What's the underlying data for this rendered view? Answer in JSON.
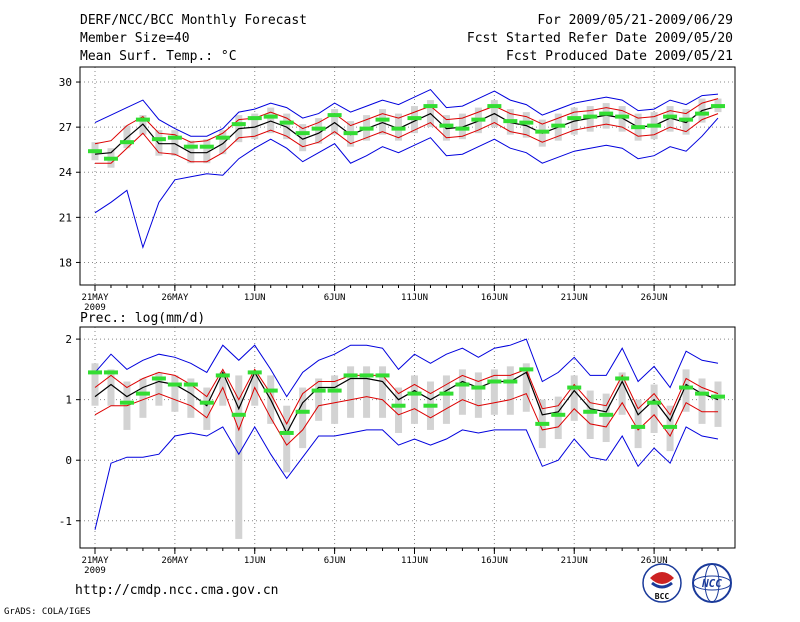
{
  "header": {
    "left_line1": "DERF/NCC/BCC Monthly Forecast",
    "left_line2": "Member Size=40",
    "left_line3": "Mean Surf. Temp.: °C",
    "right_line1": "For 2009/05/21-2009/06/29",
    "right_line2": "Fcst Started Refer Date 2009/05/20",
    "right_line3": "Fcst Produced Date 2009/05/21"
  },
  "footer": {
    "url": "http://cmdp.ncc.cma.gov.cn",
    "credit": "GrADS: COLA/IGES",
    "logo_bcc_text": "BCC",
    "logo_ncc_text": "NCC"
  },
  "colors": {
    "band": "#d3d3d3",
    "median": "#33dd33",
    "mean": "#000000",
    "inner": "#dd0000",
    "outer": "#0000dd",
    "grid": "#888888"
  },
  "chart_data": [
    {
      "type": "line",
      "title": "Mean Surf. Temp.: °C",
      "xlabel": "",
      "ylabel": "°C",
      "ylim": [
        16.5,
        31
      ],
      "yticks": [
        18,
        21,
        24,
        27,
        30
      ],
      "x_tick_days": [
        1,
        6,
        11,
        16,
        21,
        26,
        31,
        36
      ],
      "x_tick_labels": [
        "21MAY",
        "26MAY",
        "1JUN",
        "6JUN",
        "11JUN",
        "16JUN",
        "21JUN",
        "26JUN"
      ],
      "x_year_label": "2009",
      "days": [
        1,
        2,
        3,
        4,
        5,
        6,
        7,
        8,
        9,
        10,
        11,
        12,
        13,
        14,
        15,
        16,
        17,
        18,
        19,
        20,
        21,
        22,
        23,
        24,
        25,
        26,
        27,
        28,
        29,
        30,
        31,
        32,
        33,
        34,
        35,
        36,
        37,
        38,
        39,
        40
      ],
      "series": [
        {
          "name": "Ensemble mean",
          "values": [
            25.2,
            25.3,
            26.3,
            27.2,
            25.9,
            25.9,
            25.3,
            25.3,
            25.9,
            26.9,
            27.0,
            27.4,
            27.0,
            26.2,
            26.6,
            27.3,
            26.5,
            26.9,
            27.3,
            26.9,
            27.4,
            27.9,
            26.9,
            27.0,
            27.4,
            27.9,
            27.3,
            27.1,
            26.6,
            27.0,
            27.4,
            27.6,
            27.8,
            27.6,
            27.0,
            27.1,
            27.6,
            27.3,
            28.1,
            28.4
          ]
        },
        {
          "name": "Inner bound high",
          "values": [
            25.9,
            26.1,
            27.1,
            27.7,
            26.6,
            26.5,
            26.0,
            26.1,
            26.6,
            27.5,
            27.6,
            28.0,
            27.6,
            26.9,
            27.3,
            27.9,
            27.1,
            27.5,
            27.9,
            27.6,
            28.0,
            28.4,
            27.5,
            27.6,
            28.0,
            28.4,
            27.9,
            27.7,
            27.2,
            27.6,
            28.0,
            28.1,
            28.3,
            28.1,
            27.6,
            27.7,
            28.1,
            27.9,
            28.6,
            28.9
          ]
        },
        {
          "name": "Inner bound low",
          "values": [
            24.6,
            24.6,
            25.6,
            26.6,
            25.3,
            25.2,
            24.7,
            24.7,
            25.3,
            26.3,
            26.4,
            26.8,
            26.4,
            25.7,
            26.0,
            26.7,
            25.9,
            26.3,
            26.7,
            26.3,
            26.8,
            27.3,
            26.3,
            26.4,
            26.8,
            27.3,
            26.7,
            26.5,
            26.0,
            26.4,
            26.8,
            27.0,
            27.2,
            27.0,
            26.4,
            26.5,
            27.0,
            26.7,
            27.5,
            27.9
          ]
        },
        {
          "name": "Max",
          "values": [
            27.3,
            27.8,
            28.3,
            28.8,
            27.5,
            26.9,
            26.4,
            26.4,
            26.9,
            28.0,
            28.2,
            28.6,
            28.3,
            27.6,
            27.9,
            28.6,
            28.0,
            28.4,
            28.8,
            28.5,
            29.0,
            29.5,
            28.3,
            28.4,
            28.9,
            29.4,
            28.8,
            28.5,
            27.8,
            28.2,
            28.6,
            28.8,
            29.0,
            28.8,
            28.1,
            28.2,
            28.8,
            28.5,
            29.1,
            29.2
          ]
        },
        {
          "name": "Min",
          "values": [
            21.3,
            22.0,
            22.8,
            19.0,
            22.0,
            23.5,
            23.7,
            23.9,
            23.8,
            24.9,
            25.6,
            26.2,
            25.6,
            24.7,
            25.3,
            25.9,
            24.6,
            25.1,
            25.7,
            25.3,
            25.8,
            26.3,
            25.1,
            25.2,
            25.7,
            26.2,
            25.6,
            25.3,
            24.6,
            25.0,
            25.4,
            25.6,
            25.8,
            25.6,
            24.9,
            25.1,
            25.7,
            25.4,
            26.4,
            27.6
          ]
        },
        {
          "name": "Spread high",
          "values": [
            26.0,
            25.6,
            27.1,
            27.8,
            26.8,
            26.8,
            26.1,
            26.2,
            26.8,
            27.8,
            27.9,
            28.3,
            27.9,
            27.2,
            27.6,
            28.2,
            27.4,
            27.8,
            28.2,
            27.9,
            28.4,
            28.8,
            27.8,
            27.9,
            28.3,
            28.8,
            28.2,
            28.0,
            27.5,
            27.9,
            28.3,
            28.4,
            28.6,
            28.4,
            27.9,
            28.0,
            28.4,
            28.2,
            28.9,
            28.9
          ]
        },
        {
          "name": "Spread low",
          "values": [
            24.8,
            24.3,
            25.6,
            26.5,
            25.1,
            25.1,
            24.6,
            24.6,
            25.2,
            26.0,
            26.2,
            26.6,
            26.2,
            25.4,
            25.9,
            26.5,
            25.7,
            26.1,
            26.5,
            26.1,
            26.6,
            27.0,
            26.1,
            26.2,
            26.6,
            27.0,
            26.5,
            26.3,
            25.7,
            26.1,
            26.5,
            26.7,
            26.9,
            26.7,
            26.1,
            26.2,
            26.7,
            26.5,
            27.3,
            28.0
          ]
        },
        {
          "name": "Median",
          "values": [
            25.4,
            24.9,
            26.0,
            27.5,
            26.2,
            26.3,
            25.7,
            25.7,
            26.3,
            27.2,
            27.6,
            27.7,
            27.3,
            26.6,
            26.9,
            27.8,
            26.6,
            26.9,
            27.5,
            26.9,
            27.6,
            28.4,
            27.1,
            26.9,
            27.5,
            28.4,
            27.4,
            27.3,
            26.7,
            27.1,
            27.6,
            27.7,
            27.9,
            27.7,
            27.0,
            27.1,
            27.7,
            27.5,
            27.9,
            28.4
          ]
        }
      ]
    },
    {
      "type": "line",
      "title": "Prec.: log(mm/d)",
      "xlabel": "",
      "ylabel": "log(mm/d)",
      "ylim": [
        -1.45,
        2.2
      ],
      "yticks": [
        -1,
        0,
        1,
        2
      ],
      "x_tick_days": [
        1,
        6,
        11,
        16,
        21,
        26,
        31,
        36
      ],
      "x_tick_labels": [
        "21MAY",
        "26MAY",
        "1JUN",
        "6JUN",
        "11JUN",
        "16JUN",
        "21JUN",
        "26JUN"
      ],
      "x_year_label": "2009",
      "days": [
        1,
        2,
        3,
        4,
        5,
        6,
        7,
        8,
        9,
        10,
        11,
        12,
        13,
        14,
        15,
        16,
        17,
        18,
        19,
        20,
        21,
        22,
        23,
        24,
        25,
        26,
        27,
        28,
        29,
        30,
        31,
        32,
        33,
        34,
        35,
        36,
        37,
        38,
        39,
        40
      ],
      "series": [
        {
          "name": "Ensemble mean",
          "values": [
            1.05,
            1.25,
            1.05,
            1.2,
            1.3,
            1.25,
            1.1,
            0.9,
            1.45,
            0.85,
            1.45,
            1.0,
            0.45,
            0.95,
            1.2,
            1.2,
            1.35,
            1.35,
            1.3,
            1.0,
            1.15,
            1.0,
            1.15,
            1.3,
            1.2,
            1.3,
            1.3,
            1.45,
            0.75,
            0.8,
            1.15,
            0.85,
            0.8,
            1.3,
            0.75,
            1.0,
            0.65,
            1.25,
            1.1,
            1.0
          ]
        },
        {
          "name": "Inner bound high",
          "values": [
            1.2,
            1.4,
            1.2,
            1.35,
            1.45,
            1.4,
            1.25,
            1.05,
            1.5,
            1.0,
            1.5,
            1.1,
            0.6,
            1.1,
            1.3,
            1.3,
            1.4,
            1.4,
            1.4,
            1.1,
            1.25,
            1.1,
            1.25,
            1.4,
            1.3,
            1.4,
            1.4,
            1.5,
            0.85,
            0.9,
            1.25,
            0.95,
            0.9,
            1.4,
            0.85,
            1.1,
            0.75,
            1.35,
            1.2,
            1.1
          ]
        },
        {
          "name": "Inner bound low",
          "values": [
            0.75,
            0.9,
            0.9,
            1.0,
            1.1,
            1.0,
            0.9,
            0.7,
            1.2,
            0.5,
            1.2,
            0.7,
            0.25,
            0.5,
            0.9,
            0.95,
            1.0,
            1.05,
            1.0,
            0.75,
            0.85,
            0.7,
            0.85,
            1.0,
            0.9,
            0.95,
            1.0,
            1.1,
            0.5,
            0.55,
            0.85,
            0.6,
            0.55,
            0.95,
            0.5,
            0.75,
            0.4,
            0.95,
            0.8,
            0.8
          ]
        },
        {
          "name": "Max",
          "values": [
            1.45,
            1.75,
            1.5,
            1.65,
            1.75,
            1.7,
            1.6,
            1.45,
            1.9,
            1.65,
            1.9,
            1.5,
            1.05,
            1.45,
            1.65,
            1.75,
            1.9,
            1.9,
            1.85,
            1.5,
            1.75,
            1.6,
            1.75,
            1.85,
            1.7,
            1.85,
            1.9,
            2.0,
            1.3,
            1.45,
            1.7,
            1.4,
            1.4,
            1.85,
            1.3,
            1.55,
            1.2,
            1.8,
            1.65,
            1.6
          ]
        },
        {
          "name": "Min",
          "values": [
            -1.15,
            -0.05,
            0.05,
            0.05,
            0.1,
            0.4,
            0.45,
            0.4,
            0.55,
            0.1,
            0.55,
            0.1,
            -0.3,
            0.05,
            0.4,
            0.4,
            0.45,
            0.5,
            0.5,
            0.25,
            0.35,
            0.25,
            0.35,
            0.5,
            0.45,
            0.5,
            0.5,
            0.5,
            -0.1,
            0.0,
            0.35,
            0.05,
            0.0,
            0.4,
            -0.1,
            0.2,
            -0.05,
            0.55,
            0.4,
            0.35
          ]
        },
        {
          "name": "Spread high",
          "values": [
            1.6,
            1.5,
            1.3,
            1.35,
            1.45,
            1.4,
            1.35,
            1.2,
            1.45,
            1.4,
            1.45,
            1.4,
            0.9,
            1.2,
            1.35,
            1.4,
            1.55,
            1.55,
            1.55,
            1.2,
            1.4,
            1.3,
            1.4,
            1.5,
            1.45,
            1.5,
            1.55,
            1.6,
            1.0,
            1.05,
            1.4,
            1.15,
            1.1,
            1.45,
            1.0,
            1.25,
            0.9,
            1.5,
            1.35,
            1.3
          ]
        },
        {
          "name": "Spread low",
          "values": [
            0.9,
            0.9,
            0.5,
            0.7,
            0.9,
            0.8,
            0.7,
            0.5,
            0.9,
            -1.3,
            0.9,
            0.6,
            -0.2,
            0.2,
            0.65,
            0.6,
            0.7,
            0.7,
            0.7,
            0.45,
            0.6,
            0.5,
            0.6,
            0.75,
            0.7,
            0.75,
            0.75,
            0.8,
            0.2,
            0.35,
            0.65,
            0.35,
            0.3,
            0.75,
            0.2,
            0.45,
            0.15,
            0.8,
            0.6,
            0.55
          ]
        },
        {
          "name": "Median",
          "values": [
            1.45,
            1.45,
            0.95,
            1.1,
            1.35,
            1.25,
            1.25,
            0.95,
            1.4,
            0.75,
            1.45,
            1.15,
            0.45,
            0.8,
            1.15,
            1.15,
            1.4,
            1.4,
            1.4,
            0.9,
            1.1,
            0.9,
            1.1,
            1.25,
            1.2,
            1.3,
            1.3,
            1.5,
            0.6,
            0.75,
            1.2,
            0.8,
            0.75,
            1.35,
            0.55,
            0.95,
            0.55,
            1.2,
            1.1,
            1.05
          ]
        }
      ]
    }
  ]
}
